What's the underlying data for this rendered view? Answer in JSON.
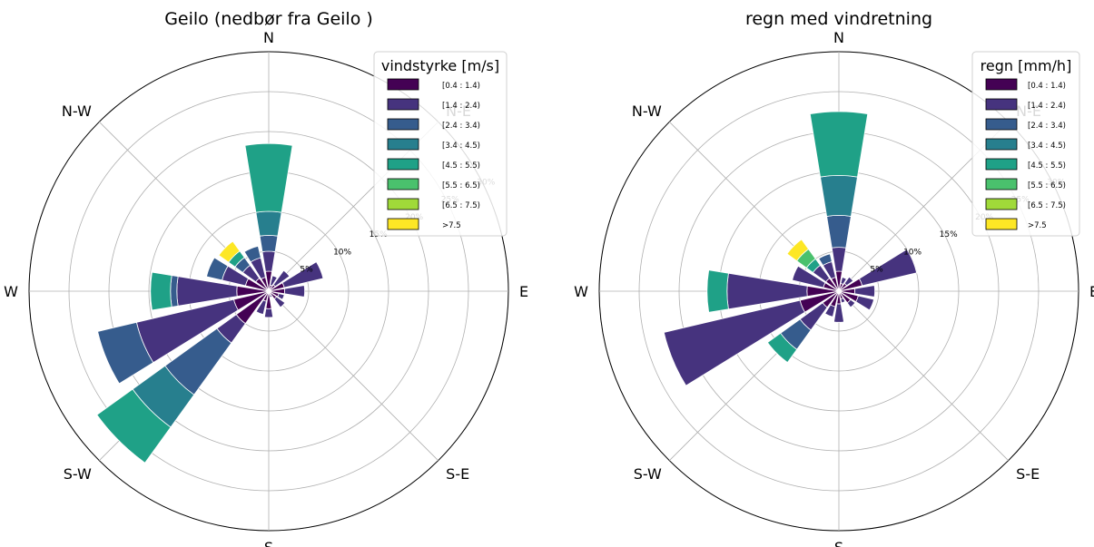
{
  "colors": {
    "bins": [
      "#440154",
      "#46337e",
      "#365c8d",
      "#277f8e",
      "#1fa187",
      "#4ac16d",
      "#a0da39",
      "#fde725"
    ],
    "grid": "#b0b0b0",
    "edge": "#ffffff"
  },
  "chart_data": [
    {
      "type": "windrose",
      "title": "Geilo (nedbør fra Geilo )",
      "directions": [
        "N",
        "N-E",
        "E",
        "S-E",
        "S",
        "S-W",
        "W",
        "N-W"
      ],
      "radial_ticks": [
        "5%",
        "10%",
        "15%",
        "20%",
        "25%",
        "30%"
      ],
      "radial_tick_values": [
        5,
        10,
        15,
        20,
        25,
        30
      ],
      "rmax": 30,
      "legend": {
        "title": "vindstyrke [m/s]",
        "labels": [
          "[0.4 : 1.4)",
          "[1.4 : 2.4)",
          "[2.4 : 3.4)",
          "[3.4 : 4.5)",
          "[4.5 : 5.5)",
          "[5.5 : 6.5)",
          "[6.5 : 7.5)",
          ">7.5"
        ],
        "placement": "top-right"
      },
      "sector_width_deg": 22.5,
      "series": [
        {
          "dir_deg": 0,
          "values": [
            2.5,
            2.5,
            2.0,
            3.0,
            8.5,
            0,
            0,
            0
          ]
        },
        {
          "dir_deg": 22.5,
          "values": [
            0.8,
            1.2,
            0,
            0,
            0,
            0,
            0,
            0
          ]
        },
        {
          "dir_deg": 45,
          "values": [
            1.0,
            2.2,
            0,
            0,
            0,
            0,
            0,
            0
          ]
        },
        {
          "dir_deg": 67.5,
          "values": [
            2.0,
            5.0,
            0,
            0,
            0,
            0,
            0,
            0
          ]
        },
        {
          "dir_deg": 90,
          "values": [
            2.0,
            2.5,
            0,
            0,
            0,
            0,
            0,
            0
          ]
        },
        {
          "dir_deg": 112.5,
          "values": [
            1.3,
            0.7,
            0,
            0,
            0,
            0,
            0,
            0
          ]
        },
        {
          "dir_deg": 135,
          "values": [
            1.2,
            1.3,
            0,
            0,
            0,
            0,
            0,
            0
          ]
        },
        {
          "dir_deg": 157.5,
          "values": [
            0.5,
            0.3,
            0,
            0,
            0,
            0,
            0,
            0
          ]
        },
        {
          "dir_deg": 180,
          "values": [
            2.2,
            1.1,
            0,
            0,
            0,
            0,
            0,
            0
          ]
        },
        {
          "dir_deg": 202.5,
          "values": [
            1.3,
            1.7,
            0,
            0,
            0,
            0,
            0,
            0
          ]
        },
        {
          "dir_deg": 225,
          "values": [
            5.0,
            3.0,
            8.0,
            5.0,
            5.5,
            0,
            0,
            0
          ]
        },
        {
          "dir_deg": 247.5,
          "values": [
            4.5,
            12.5,
            5.0,
            0,
            0,
            0,
            0,
            0
          ]
        },
        {
          "dir_deg": 270,
          "values": [
            4.0,
            7.5,
            0.8,
            0,
            2.5,
            0,
            0,
            0
          ]
        },
        {
          "dir_deg": 292.5,
          "values": [
            3.0,
            3.0,
            2.0,
            0,
            0,
            0,
            0,
            0
          ]
        },
        {
          "dir_deg": 315,
          "values": [
            2.0,
            2.0,
            1.2,
            0,
            1.0,
            0,
            0,
            1.5
          ]
        },
        {
          "dir_deg": 337.5,
          "values": [
            1.8,
            2.5,
            1.5,
            0,
            0,
            0,
            0,
            0
          ]
        }
      ]
    },
    {
      "type": "windrose",
      "title": "regn med vindretning",
      "directions": [
        "N",
        "N-E",
        "E",
        "S-E",
        "S",
        "S-W",
        "W",
        "N-W"
      ],
      "radial_ticks": [
        "5%",
        "10%",
        "15%",
        "20%",
        "25%",
        "30%"
      ],
      "radial_tick_values": [
        5,
        10,
        15,
        20,
        25,
        30
      ],
      "rmax": 30,
      "legend": {
        "title": "regn [mm/h]",
        "labels": [
          "[0.4 : 1.4)",
          "[1.4 : 2.4)",
          "[2.4 : 3.4)",
          "[3.4 : 4.5)",
          "[4.5 : 5.5)",
          "[5.5 : 6.5)",
          "[6.5 : 7.5)",
          ">7.5"
        ],
        "placement": "top-right"
      },
      "sector_width_deg": 22.5,
      "series": [
        {
          "dir_deg": 0,
          "values": [
            2.5,
            3.0,
            4.0,
            5.0,
            8.0,
            0,
            0,
            0
          ]
        },
        {
          "dir_deg": 22.5,
          "values": [
            1.0,
            0.8,
            0,
            0,
            0,
            0,
            0,
            0
          ]
        },
        {
          "dir_deg": 45,
          "values": [
            1.2,
            1.0,
            0,
            0,
            0,
            0,
            0,
            0
          ]
        },
        {
          "dir_deg": 67.5,
          "values": [
            3.0,
            7.0,
            0,
            0,
            0,
            0,
            0,
            0
          ]
        },
        {
          "dir_deg": 90,
          "values": [
            2.0,
            2.5,
            0,
            0,
            0,
            0,
            0,
            0
          ]
        },
        {
          "dir_deg": 112.5,
          "values": [
            2.5,
            2.0,
            0,
            0,
            0,
            0,
            0,
            0
          ]
        },
        {
          "dir_deg": 135,
          "values": [
            1.8,
            0.7,
            0,
            0,
            0,
            0,
            0,
            0
          ]
        },
        {
          "dir_deg": 157.5,
          "values": [
            1.0,
            0.5,
            0,
            0,
            0,
            0,
            0,
            0
          ]
        },
        {
          "dir_deg": 180,
          "values": [
            1.6,
            2.3,
            0,
            0,
            0,
            0,
            0,
            0
          ]
        },
        {
          "dir_deg": 202.5,
          "values": [
            2.0,
            1.3,
            0,
            0,
            0,
            0,
            0,
            0
          ]
        },
        {
          "dir_deg": 225,
          "values": [
            2.5,
            3.5,
            3.0,
            0,
            2.0,
            0,
            0,
            0
          ]
        },
        {
          "dir_deg": 247.5,
          "values": [
            5.0,
            17.5,
            0,
            0,
            0,
            0,
            0,
            0
          ]
        },
        {
          "dir_deg": 270,
          "values": [
            4.0,
            10.0,
            0,
            0,
            2.5,
            0,
            0,
            0
          ]
        },
        {
          "dir_deg": 292.5,
          "values": [
            2.0,
            4.0,
            0,
            0,
            0,
            0,
            0,
            0
          ]
        },
        {
          "dir_deg": 315,
          "values": [
            2.0,
            2.0,
            0,
            0,
            1.0,
            1.5,
            0,
            1.5
          ]
        },
        {
          "dir_deg": 337.5,
          "values": [
            1.8,
            2.0,
            1.0,
            0,
            0,
            0,
            0,
            0
          ]
        }
      ]
    }
  ]
}
